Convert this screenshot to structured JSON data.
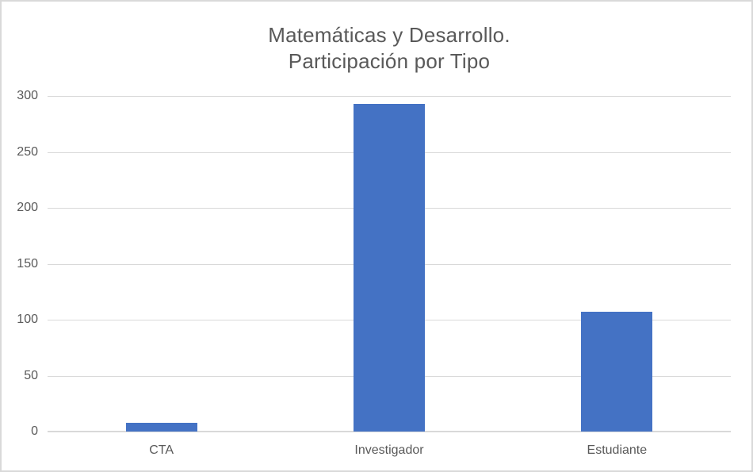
{
  "chart_data": {
    "type": "bar",
    "title": "Matemáticas y Desarrollo. Participación por Tipo",
    "title_lines": [
      "Matemáticas y Desarrollo.",
      "Participación por Tipo"
    ],
    "categories": [
      "CTA",
      "Investigador",
      "Estudiante"
    ],
    "values": [
      8,
      293,
      107
    ],
    "xlabel": "",
    "ylabel": "",
    "ylim": [
      0,
      300
    ],
    "yticks": [
      0,
      50,
      100,
      150,
      200,
      250,
      300
    ],
    "grid": true,
    "legend_position": "none",
    "colors": {
      "bar": "#4472C4",
      "gridline": "#D9D9D9",
      "axis_line": "#D9D9D9",
      "title_text": "#595959",
      "tick_text": "#595959",
      "chart_border": "#D9D9D9",
      "background": "#FFFFFF"
    }
  }
}
